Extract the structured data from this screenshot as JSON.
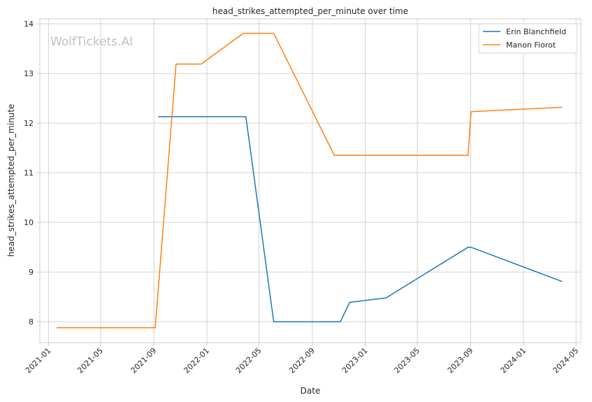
{
  "chart_data": {
    "type": "line",
    "title": "head_strikes_attempted_per_minute over time",
    "xlabel": "Date",
    "ylabel": "head_strikes_attempted_per_minute",
    "watermark": "WolfTickets.AI",
    "x_ticks": [
      "2021-01",
      "2021-05",
      "2021-09",
      "2022-01",
      "2022-05",
      "2022-09",
      "2023-01",
      "2023-05",
      "2023-09",
      "2024-01",
      "2024-05"
    ],
    "y_ticks": [
      8,
      9,
      10,
      11,
      12,
      13,
      14
    ],
    "xlim": [
      "2020-12-12",
      "2024-05-12"
    ],
    "ylim": [
      7.58,
      14.1
    ],
    "grid": true,
    "legend_position": "top-right",
    "series": [
      {
        "name": "Erin Blanchfield",
        "color": "#1f77b4",
        "points": [
          {
            "x": "2021-09-11",
            "y": 12.13
          },
          {
            "x": "2022-04-01",
            "y": 12.13
          },
          {
            "x": "2022-06-04",
            "y": 8.0
          },
          {
            "x": "2022-11-05",
            "y": 8.0
          },
          {
            "x": "2022-11-26",
            "y": 8.39
          },
          {
            "x": "2023-02-18",
            "y": 8.48
          },
          {
            "x": "2023-08-26",
            "y": 9.5
          },
          {
            "x": "2023-09-02",
            "y": 9.5
          },
          {
            "x": "2024-03-30",
            "y": 8.81
          }
        ]
      },
      {
        "name": "Manon Fiorot",
        "color": "#ff7f0e",
        "points": [
          {
            "x": "2021-01-20",
            "y": 7.88
          },
          {
            "x": "2021-09-04",
            "y": 7.88
          },
          {
            "x": "2021-10-22",
            "y": 13.19
          },
          {
            "x": "2021-12-19",
            "y": 13.19
          },
          {
            "x": "2022-03-26",
            "y": 13.81
          },
          {
            "x": "2022-06-04",
            "y": 13.81
          },
          {
            "x": "2022-10-22",
            "y": 11.35
          },
          {
            "x": "2023-08-26",
            "y": 11.35
          },
          {
            "x": "2023-09-02",
            "y": 12.23
          },
          {
            "x": "2024-03-30",
            "y": 12.32
          }
        ]
      }
    ]
  }
}
